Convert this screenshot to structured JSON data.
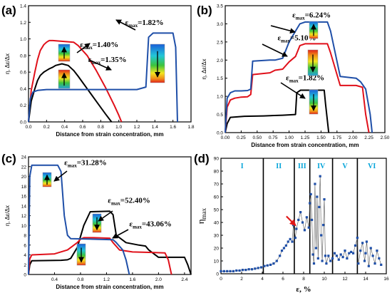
{
  "colors": {
    "black": "#000000",
    "red": "#e0101a",
    "blue": "#1f4fa8",
    "square": "#1f4fa8",
    "region": "#00a3d9",
    "arrow_red": "#e01818"
  },
  "chart_data": [
    {
      "id": "a",
      "panel_label": "(a)",
      "type": "line",
      "xlabel": "Distance from strain concentration, mm",
      "ylabel": "η, Δε/Δx",
      "xlim": [
        0,
        1.8
      ],
      "ylim": [
        0,
        1.4
      ],
      "xticks": [
        "0.0",
        "0.2",
        "0.4",
        "0.6",
        "0.8",
        "1.0",
        "1.2",
        "1.4",
        "1.6",
        "1.8"
      ],
      "yticks": [
        "0.0",
        "0.2",
        "0.4",
        "0.6",
        "0.8",
        "1.0",
        "1.2",
        "1.4"
      ],
      "annotations": [
        {
          "prefix": "ε",
          "sub": "max",
          "value": "=1.82%",
          "x": 1.07,
          "y": 1.17
        },
        {
          "prefix": "ε",
          "sub": "max",
          "value": "=1.40%",
          "x": 0.57,
          "y": 0.9
        },
        {
          "prefix": "ε",
          "sub": "max",
          "value": "=1.35%",
          "x": 0.66,
          "y": 0.72
        }
      ],
      "series": [
        {
          "color": "red",
          "x": [
            0,
            0.03,
            0.07,
            0.1,
            0.13,
            0.17,
            0.2,
            0.23,
            0.27,
            0.5,
            0.55,
            0.65,
            0.75,
            0.85,
            0.95,
            1.0,
            1.03
          ],
          "y": [
            0,
            0.38,
            0.6,
            0.75,
            0.86,
            0.93,
            0.96,
            0.98,
            0.98,
            0.96,
            0.92,
            0.8,
            0.62,
            0.42,
            0.2,
            0.08,
            0
          ]
        },
        {
          "color": "black",
          "x": [
            0,
            0.03,
            0.07,
            0.1,
            0.13,
            0.17,
            0.2,
            0.23,
            0.27,
            0.3,
            0.37,
            0.44,
            0.5,
            0.55,
            0.65,
            0.75,
            0.85,
            0.92
          ],
          "y": [
            0,
            0.25,
            0.4,
            0.5,
            0.56,
            0.6,
            0.62,
            0.64,
            0.66,
            0.68,
            0.7,
            0.68,
            0.62,
            0.55,
            0.4,
            0.25,
            0.1,
            0
          ]
        },
        {
          "color": "blue",
          "x": [
            0,
            0.02,
            0.05,
            0.1,
            0.2,
            0.4,
            0.8,
            1.2,
            1.3,
            1.33,
            1.38,
            1.6,
            1.63,
            1.65
          ],
          "y": [
            0,
            0.28,
            0.36,
            0.38,
            0.39,
            0.39,
            0.39,
            0.39,
            0.42,
            1.02,
            1.07,
            1.07,
            0.9,
            0
          ]
        }
      ]
    },
    {
      "id": "b",
      "panel_label": "(b)",
      "type": "line",
      "xlabel": "Distance from strain concentration, mm",
      "ylabel": "η, Δε/Δx",
      "xlim": [
        0,
        2.5
      ],
      "ylim": [
        0,
        3.5
      ],
      "xticks": [
        "0.00",
        "0.25",
        "0.50",
        "0.75",
        "1.00",
        "1.25",
        "1.50",
        "1.75",
        "2.00",
        "2.25",
        "2.50"
      ],
      "yticks": [
        "0.0",
        "0.5",
        "1.0",
        "1.5",
        "2.0",
        "2.5",
        "3.0",
        "3.5"
      ],
      "annotations": [
        {
          "prefix": "ε",
          "sub": "max",
          "value": "=6.24%",
          "x": 1.05,
          "y": 3.18
        },
        {
          "prefix": "ε",
          "sub": "max",
          "value": "=5.10%",
          "x": 0.82,
          "y": 2.55
        },
        {
          "prefix": "ε",
          "sub": "max",
          "value": "=1.82%",
          "x": 0.95,
          "y": 1.45
        }
      ],
      "series": [
        {
          "color": "black",
          "x": [
            0,
            0.03,
            0.08,
            0.3,
            0.6,
            0.9,
            1.1,
            1.12,
            1.18,
            1.55,
            1.57,
            1.62
          ],
          "y": [
            0,
            0.25,
            0.42,
            0.45,
            0.46,
            0.48,
            0.5,
            1.1,
            1.17,
            1.17,
            0.8,
            0
          ]
        },
        {
          "color": "red",
          "x": [
            0,
            0.03,
            0.08,
            0.15,
            0.25,
            0.35,
            0.4,
            0.43,
            0.7,
            0.78,
            0.9,
            1.0,
            1.1,
            1.17,
            1.25,
            1.6,
            1.65,
            1.8,
            2.0,
            2.05,
            2.15,
            2.2,
            2.25
          ],
          "y": [
            0,
            0.7,
            0.9,
            0.95,
            0.98,
            0.99,
            1.05,
            1.6,
            1.65,
            1.72,
            1.75,
            1.95,
            2.1,
            2.4,
            2.45,
            2.45,
            2.2,
            1.3,
            1.3,
            1.3,
            1.25,
            0.5,
            0
          ]
        },
        {
          "color": "blue",
          "x": [
            0,
            0.03,
            0.08,
            0.15,
            0.25,
            0.35,
            0.4,
            0.43,
            0.7,
            0.78,
            0.9,
            1.0,
            1.1,
            1.17,
            1.25,
            1.6,
            1.65,
            1.8,
            2.05,
            2.12,
            2.2,
            2.27,
            2.3
          ],
          "y": [
            0,
            0.95,
            1.1,
            1.15,
            1.15,
            1.16,
            1.2,
            1.97,
            2.0,
            2.0,
            2.05,
            2.5,
            2.8,
            3.0,
            3.05,
            3.05,
            2.8,
            1.55,
            1.5,
            1.4,
            1.2,
            0.5,
            0
          ]
        }
      ]
    },
    {
      "id": "c",
      "panel_label": "(c)",
      "type": "line",
      "xlabel": "Distance from strain concentration, mm",
      "ylabel": "η, Δε/Δx",
      "xlim": [
        0,
        2.5
      ],
      "ylim": [
        0,
        24
      ],
      "xticks": [
        "0.4",
        "0.8",
        "1.2",
        "1.6",
        "2.0",
        "2.4"
      ],
      "yticks": [
        "0",
        "2",
        "4",
        "6",
        "8",
        "10",
        "12",
        "14",
        "16",
        "18",
        "20",
        "22",
        "24"
      ],
      "annotations": [
        {
          "prefix": "ε",
          "sub": "max",
          "value": "=31.28%",
          "x": 0.55,
          "y": 22.3
        },
        {
          "prefix": "ε",
          "sub": "max",
          "value": "=52.40%",
          "x": 1.22,
          "y": 14.6
        },
        {
          "prefix": "ε",
          "sub": "max",
          "value": "=43.06%",
          "x": 1.55,
          "y": 9.8
        }
      ],
      "series": [
        {
          "color": "black",
          "x": [
            0,
            0.02,
            0.05,
            0.5,
            0.6,
            0.65,
            0.75,
            0.85,
            0.95,
            1.25,
            1.3,
            1.35,
            1.5,
            1.7,
            1.8,
            1.85,
            2.0,
            2.4,
            2.45,
            2.5
          ],
          "y": [
            0,
            2,
            2.8,
            2.9,
            3.0,
            3.3,
            5.5,
            10,
            12.8,
            12.9,
            12.2,
            8,
            6.5,
            6,
            5.8,
            5.0,
            3.5,
            3.5,
            2,
            0
          ]
        },
        {
          "color": "red",
          "x": [
            0,
            0.02,
            0.05,
            0.4,
            0.6,
            0.75,
            0.8,
            0.85,
            1.0,
            1.25,
            1.3,
            1.4,
            1.6,
            1.9,
            2.1,
            2.15,
            2.2
          ],
          "y": [
            0,
            3.2,
            4.0,
            4.2,
            5.0,
            6.5,
            7.2,
            7.5,
            7.5,
            7.4,
            6.5,
            5,
            4.6,
            4.5,
            4.4,
            3,
            0
          ]
        },
        {
          "color": "blue",
          "x": [
            0,
            0.02,
            0.05,
            0.45,
            0.5,
            0.55,
            0.6,
            0.65,
            1.0,
            1.3,
            1.35,
            1.45,
            1.5,
            1.55
          ],
          "y": [
            0,
            20,
            22.3,
            22.3,
            21,
            12,
            8,
            7.3,
            7.2,
            7.1,
            6.5,
            5,
            3,
            0
          ]
        }
      ]
    },
    {
      "id": "d",
      "panel_label": "(d)",
      "type": "scatter",
      "xlabel": "ε, %",
      "ylabel": "η",
      "ylabel_sub": "max",
      "xlim": [
        0,
        16
      ],
      "ylim": [
        0,
        90
      ],
      "xticks": [
        "0",
        "2",
        "4",
        "6",
        "8",
        "10",
        "12",
        "14",
        "16"
      ],
      "yticks": [
        "0",
        "10",
        "20",
        "30",
        "40",
        "50",
        "60",
        "70",
        "80",
        "90"
      ],
      "regions": [
        {
          "label": "I",
          "start": 0,
          "end": 4.1
        },
        {
          "label": "II",
          "start": 4.1,
          "end": 7.1
        },
        {
          "label": "III",
          "start": 7.1,
          "end": 8.6
        },
        {
          "label": "IV",
          "start": 8.6,
          "end": 10.8
        },
        {
          "label": "V",
          "start": 10.8,
          "end": 13.2
        },
        {
          "label": "VI",
          "start": 13.2,
          "end": 16
        }
      ],
      "arrow_target": {
        "x": 7.3,
        "y": 37
      },
      "series": [
        {
          "color": "square",
          "x": [
            0,
            0.3,
            0.6,
            0.9,
            1.2,
            1.5,
            1.8,
            2.1,
            2.4,
            2.7,
            3.0,
            3.3,
            3.6,
            3.9,
            4.2,
            4.5,
            4.8,
            5.1,
            5.4,
            5.7,
            5.9,
            6.1,
            6.3,
            6.5,
            6.7,
            6.9,
            7.0,
            7.2,
            7.3,
            7.5,
            7.7,
            7.9,
            8.1,
            8.3,
            8.5,
            8.6,
            8.7,
            8.8,
            8.9,
            9.0,
            9.1,
            9.2,
            9.3,
            9.4,
            9.5,
            9.6,
            9.7,
            9.8,
            9.9,
            10.0,
            10.1,
            10.2,
            10.4,
            10.6,
            10.8,
            11.0,
            11.2,
            11.4,
            11.6,
            11.8,
            12.0,
            12.2,
            12.4,
            12.6,
            12.8,
            13.0,
            13.2,
            13.3,
            13.5,
            13.7,
            13.9,
            14.0,
            14.1,
            14.3,
            14.5,
            14.7,
            14.9,
            15.1,
            15.3,
            15.5
          ],
          "y": [
            2,
            2,
            2,
            2,
            2,
            2.5,
            2.5,
            3,
            3,
            3.5,
            3.5,
            4,
            4.5,
            5,
            6,
            6.5,
            7,
            8,
            10,
            14,
            18,
            20,
            22,
            25,
            27,
            25,
            38,
            28,
            35,
            42,
            48,
            40,
            34,
            44,
            36,
            55,
            62,
            42,
            15,
            8,
            70,
            20,
            60,
            12,
            52,
            76,
            30,
            10,
            38,
            58,
            14,
            8,
            14,
            10,
            12,
            16,
            14,
            11,
            15,
            13,
            18,
            12,
            16,
            17,
            16,
            22,
            28,
            8,
            18,
            24,
            10,
            16,
            25,
            6,
            20,
            14,
            8,
            18,
            12,
            7
          ]
        }
      ]
    }
  ]
}
